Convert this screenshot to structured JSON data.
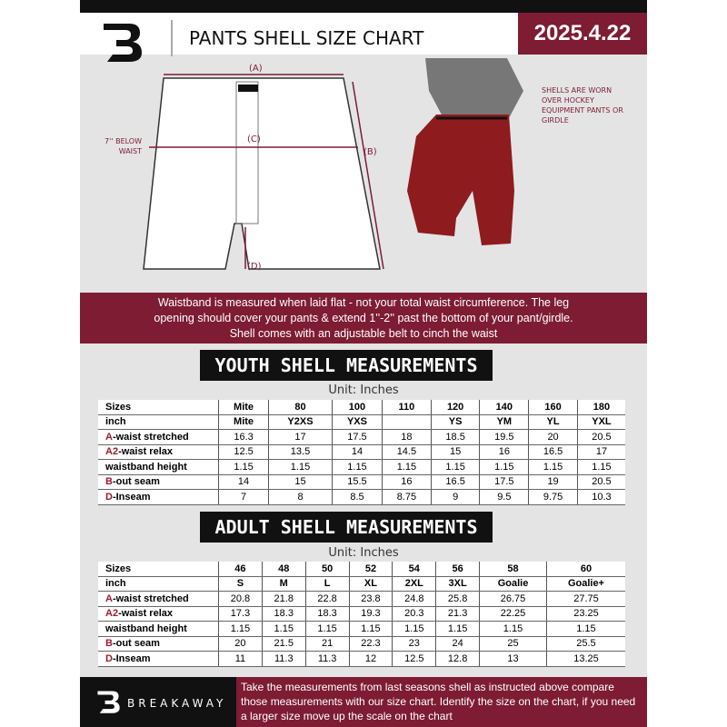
{
  "header": {
    "title": "PANTS SHELL SIZE CHART",
    "date": "2025.4.22",
    "logo": "B"
  },
  "diagram": {
    "label_a": "(A)",
    "label_b": "(B)",
    "label_c": "(C)",
    "label_d": "(D)",
    "waist_note": "7'' BELOW WAIST",
    "shell_note": "SHELLS ARE WORN OVER HOCKEY EQUIPMENT PANTS OR GIRDLE"
  },
  "band_text": [
    "Waistband is measured when laid flat - not your total waist circumference. The leg",
    "opening should cover your pants & extend 1''-2'' past the bottom of your pant/girdle.",
    "Shell comes with an adjustable belt to cinch the waist"
  ],
  "youth": {
    "title": "YOUTH SHELL MEASUREMENTS",
    "unit": "Unit: Inches",
    "rows": [
      {
        "p": "",
        "l": "Sizes",
        "v": [
          "Mite",
          "80",
          "100",
          "110",
          "120",
          "140",
          "160",
          "180"
        ]
      },
      {
        "p": "",
        "l": "inch",
        "v": [
          "Mite",
          "Y2XS",
          "YXS",
          "",
          "YS",
          "YM",
          "YL",
          "YXL"
        ]
      },
      {
        "p": "A",
        "l": "-waist stretched",
        "v": [
          "16.3",
          "17",
          "17.5",
          "18",
          "18.5",
          "19.5",
          "20",
          "20.5"
        ]
      },
      {
        "p": "A2",
        "l": "-waist relax",
        "v": [
          "12.5",
          "13.5",
          "14",
          "14.5",
          "15",
          "16",
          "16.5",
          "17"
        ]
      },
      {
        "p": "",
        "l": "waistband height",
        "v": [
          "1.15",
          "1.15",
          "1.15",
          "1.15",
          "1.15",
          "1.15",
          "1.15",
          "1.15"
        ]
      },
      {
        "p": "B",
        "l": "-out seam",
        "v": [
          "14",
          "15",
          "15.5",
          "16",
          "16.5",
          "17.5",
          "19",
          "20.5"
        ]
      },
      {
        "p": "D",
        "l": "-Inseam",
        "v": [
          "7",
          "8",
          "8.5",
          "8.75",
          "9",
          "9.5",
          "9.75",
          "10.3"
        ]
      }
    ]
  },
  "adult": {
    "title": "ADULT SHELL MEASUREMENTS",
    "unit": "Unit: Inches",
    "rows": [
      {
        "p": "",
        "l": "Sizes",
        "v": [
          "46",
          "48",
          "50",
          "52",
          "54",
          "56",
          "58",
          "60"
        ]
      },
      {
        "p": "",
        "l": "inch",
        "v": [
          "S",
          "M",
          "L",
          "XL",
          "2XL",
          "3XL",
          "Goalie",
          "Goalie+"
        ]
      },
      {
        "p": "A",
        "l": "-waist stretched",
        "v": [
          "20.8",
          "21.8",
          "22.8",
          "23.8",
          "24.8",
          "25.8",
          "26.75",
          "27.75"
        ]
      },
      {
        "p": "A2",
        "l": "-waist relax",
        "v": [
          "17.3",
          "18.3",
          "18.3",
          "19.3",
          "20.3",
          "21.3",
          "22.25",
          "23.25"
        ]
      },
      {
        "p": "",
        "l": "waistband height",
        "v": [
          "1.15",
          "1.15",
          "1.15",
          "1.15",
          "1.15",
          "1.15",
          "1.15",
          "1.15"
        ]
      },
      {
        "p": "B",
        "l": "-out seam",
        "v": [
          "20",
          "21.5",
          "21",
          "22.3",
          "23",
          "24",
          "25",
          "25.5"
        ]
      },
      {
        "p": "D",
        "l": "-Inseam",
        "v": [
          "11",
          "11.3",
          "11.3",
          "12",
          "12.5",
          "12.8",
          "13",
          "13.25"
        ]
      }
    ]
  },
  "footer": {
    "brand": "BREAKAWAY",
    "text": "Take the measurements from last seasons shell as instructed above compare those measurements  with our size chart. Identify the size on the chart, if you need a larger size move up the scale on the chart"
  },
  "colors": {
    "maroon": "#7d1c33",
    "black": "#111111",
    "background": "#e4e4e5"
  }
}
